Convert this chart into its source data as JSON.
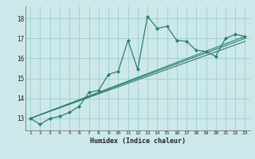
{
  "x": [
    1,
    2,
    3,
    4,
    5,
    6,
    7,
    8,
    9,
    10,
    11,
    12,
    13,
    14,
    15,
    16,
    17,
    18,
    19,
    20,
    21,
    22,
    23
  ],
  "line1": [
    13.0,
    12.7,
    13.0,
    13.1,
    13.3,
    13.6,
    14.3,
    14.4,
    15.2,
    15.35,
    16.9,
    15.45,
    18.1,
    17.5,
    17.6,
    16.9,
    16.85,
    16.4,
    16.35,
    16.1,
    17.0,
    17.2,
    17.1
  ],
  "line2_x": [
    1,
    23
  ],
  "line2_y": [
    13.0,
    17.1
  ],
  "line3_x": [
    1,
    23
  ],
  "line3_y": [
    13.0,
    17.0
  ],
  "line4_x": [
    1,
    23
  ],
  "line4_y": [
    13.0,
    16.85
  ],
  "color": "#2e7d6e",
  "bg_color": "#cde8ea",
  "grid_color": "#9ecece",
  "xlabel": "Humidex (Indice chaleur)",
  "yticks": [
    13,
    14,
    15,
    16,
    17,
    18
  ],
  "xticks": [
    1,
    2,
    3,
    4,
    5,
    6,
    7,
    8,
    9,
    10,
    11,
    12,
    13,
    14,
    15,
    16,
    17,
    18,
    19,
    20,
    21,
    22,
    23
  ],
  "ylim": [
    12.4,
    18.6
  ],
  "xlim": [
    0.5,
    23.5
  ]
}
